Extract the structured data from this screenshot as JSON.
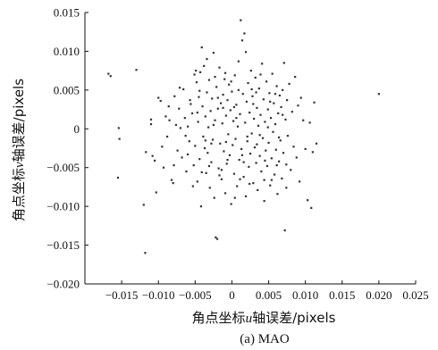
{
  "chart_data": {
    "type": "scatter",
    "caption": "(a) MAO",
    "xlabel": {
      "prefix": "角点坐标",
      "var": "u",
      "suffix": "轴误差/pixels"
    },
    "ylabel": {
      "prefix": "角点坐标",
      "var": "v",
      "suffix": "轴误差/pixels"
    },
    "xlim": [
      -0.02,
      0.025
    ],
    "ylim": [
      -0.02,
      0.015
    ],
    "x_ticks": [
      {
        "value": -0.015,
        "label": "−0.015"
      },
      {
        "value": -0.01,
        "label": "−0.010"
      },
      {
        "value": -0.005,
        "label": "−0.005"
      },
      {
        "value": 0,
        "label": "0"
      },
      {
        "value": 0.005,
        "label": "0.005"
      },
      {
        "value": 0.01,
        "label": "0.010"
      },
      {
        "value": 0.015,
        "label": "0.015"
      },
      {
        "value": 0.02,
        "label": "0.020"
      },
      {
        "value": 0.025,
        "label": "0.025"
      }
    ],
    "y_ticks": [
      {
        "value": 0.015,
        "label": "0.015"
      },
      {
        "value": 0.01,
        "label": "0.010"
      },
      {
        "value": 0.005,
        "label": "0.005"
      },
      {
        "value": 0,
        "label": "0"
      },
      {
        "value": -0.005,
        "label": "−0.005"
      },
      {
        "value": -0.01,
        "label": "−0.010"
      },
      {
        "value": -0.015,
        "label": "−0.015"
      },
      {
        "value": -0.02,
        "label": "−0.020"
      }
    ],
    "grid": false,
    "legend": "none",
    "marker_color": "#333333",
    "points": [
      [
        -0.0168,
        0.0071
      ],
      [
        -0.0165,
        0.0068
      ],
      [
        -0.0155,
        -0.0063
      ],
      [
        -0.0154,
        0.0001
      ],
      [
        -0.0153,
        -0.0013
      ],
      [
        -0.013,
        0.0076
      ],
      [
        -0.012,
        -0.0098
      ],
      [
        -0.0118,
        -0.016
      ],
      [
        -0.0117,
        -0.003
      ],
      [
        -0.011,
        0.0012
      ],
      [
        -0.011,
        0.0006
      ],
      [
        -0.0108,
        -0.0035
      ],
      [
        -0.0105,
        -0.0041
      ],
      [
        -0.0103,
        -0.0082
      ],
      [
        -0.01,
        0.004
      ],
      [
        -0.0097,
        0.0036
      ],
      [
        -0.0095,
        -0.0023
      ],
      [
        -0.0093,
        -0.005
      ],
      [
        -0.009,
        0.0016
      ],
      [
        -0.0088,
        -0.001
      ],
      [
        -0.0085,
        0.0011
      ],
      [
        -0.0082,
        -0.0066
      ],
      [
        -0.008,
        -0.007
      ],
      [
        -0.0078,
        0.0042
      ],
      [
        -0.0076,
        0.0005
      ],
      [
        -0.0074,
        -0.0028
      ],
      [
        -0.0072,
        0.0026
      ],
      [
        -0.007,
        0.0001
      ],
      [
        -0.0068,
        -0.0037
      ],
      [
        -0.0066,
        0.0051
      ],
      [
        -0.0064,
        0.0014
      ],
      [
        -0.0062,
        -0.0055
      ],
      [
        -0.006,
        0.0003
      ],
      [
        -0.0058,
        -0.0016
      ],
      [
        -0.0056,
        0.0032
      ],
      [
        -0.0054,
        0.002
      ],
      [
        -0.0052,
        -0.0047
      ],
      [
        -0.0051,
        0.007
      ],
      [
        -0.005,
        -0.0022
      ],
      [
        -0.0049,
        0.0075
      ],
      [
        -0.0048,
        0.006
      ],
      [
        -0.0047,
        -0.0068
      ],
      [
        -0.0046,
        0.0009
      ],
      [
        -0.0045,
        0.0041
      ],
      [
        -0.0044,
        -0.0039
      ],
      [
        -0.0043,
        0.0073
      ],
      [
        -0.0042,
        -0.01
      ],
      [
        -0.0041,
        0.0105
      ],
      [
        -0.004,
        0.0029
      ],
      [
        -0.0039,
        -0.001
      ],
      [
        -0.0038,
        0.0081
      ],
      [
        -0.0037,
        -0.0025
      ],
      [
        -0.0036,
        0.0016
      ],
      [
        -0.0035,
        -0.0057
      ],
      [
        -0.0034,
        0.0047
      ],
      [
        -0.0033,
        -0.0031
      ],
      [
        -0.0032,
        0.0002
      ],
      [
        -0.0031,
        0.0063
      ],
      [
        -0.003,
        -0.0076
      ],
      [
        -0.0029,
        0.0023
      ],
      [
        -0.0028,
        -0.0043
      ],
      [
        -0.0027,
        0.0039
      ],
      [
        -0.0026,
        -0.0014
      ],
      [
        -0.0025,
        0.0098
      ],
      [
        -0.0024,
        -0.0089
      ],
      [
        -0.0023,
        0.0011
      ],
      [
        -0.0022,
        -0.014
      ],
      [
        -0.0021,
        0.0054
      ],
      [
        -0.002,
        -0.0142
      ],
      [
        -0.0019,
        0.0026
      ],
      [
        -0.0018,
        -0.0051
      ],
      [
        -0.0017,
        0.0079
      ],
      [
        -0.0016,
        -0.0019
      ],
      [
        -0.0015,
        0.0033
      ],
      [
        -0.0014,
        -0.0065
      ],
      [
        -0.0013,
        0.0007
      ],
      [
        -0.0012,
        0.0044
      ],
      [
        -0.0011,
        -0.0029
      ],
      [
        -0.001,
        0.0064
      ],
      [
        -0.0009,
        -0.0083
      ],
      [
        -0.0008,
        0.0017
      ],
      [
        -0.0007,
        -0.0045
      ],
      [
        -0.0006,
        0.0037
      ],
      [
        -0.0005,
        -0.0007
      ],
      [
        -0.0004,
        0.0057
      ],
      [
        -0.0003,
        -0.0034
      ],
      [
        -0.0002,
        0.0024
      ],
      [
        -0.0001,
        -0.0097
      ],
      [
        0.0,
        0.0048
      ],
      [
        0.0001,
        -0.0021
      ],
      [
        0.0002,
        0.001
      ],
      [
        0.0003,
        -0.0058
      ],
      [
        0.0004,
        0.0069
      ],
      [
        0.0005,
        -0.0013
      ],
      [
        0.0006,
        0.0031
      ],
      [
        0.0007,
        -0.0074
      ],
      [
        0.0008,
        0.0003
      ],
      [
        0.0009,
        0.0087
      ],
      [
        0.001,
        -0.004
      ],
      [
        0.0011,
        0.0019
      ],
      [
        0.0012,
        0.014
      ],
      [
        0.0013,
        -0.0026
      ],
      [
        0.0014,
        0.0114
      ],
      [
        0.0015,
        0.0045
      ],
      [
        0.0016,
        -0.0062
      ],
      [
        0.0017,
        0.0123
      ],
      [
        0.0018,
        0.0008
      ],
      [
        0.0019,
        -0.0087
      ],
      [
        0.002,
        0.0035
      ],
      [
        0.0021,
        -0.0016
      ],
      [
        0.0022,
        0.0059
      ],
      [
        0.0023,
        -0.0049
      ],
      [
        0.0024,
        0.0021
      ],
      [
        0.0025,
        -0.0032
      ],
      [
        0.0026,
        0.0075
      ],
      [
        0.0027,
        -0.0006
      ],
      [
        0.0028,
        0.0042
      ],
      [
        0.0029,
        -0.007
      ],
      [
        0.003,
        0.0013
      ],
      [
        0.0031,
        -0.0024
      ],
      [
        0.0032,
        0.0066
      ],
      [
        0.0033,
        -0.0044
      ],
      [
        0.0034,
        0.0027
      ],
      [
        0.0035,
        -0.0079
      ],
      [
        0.0036,
        0.0004
      ],
      [
        0.0037,
        0.0052
      ],
      [
        0.0038,
        -0.0035
      ],
      [
        0.0039,
        0.0018
      ],
      [
        0.004,
        -0.0055
      ],
      [
        0.0041,
        0.0084
      ],
      [
        0.0042,
        -0.0012
      ],
      [
        0.0043,
        0.0038
      ],
      [
        0.0044,
        -0.0066
      ],
      [
        0.0045,
        0.0009
      ],
      [
        0.0046,
        -0.0028
      ],
      [
        0.0047,
        0.0061
      ],
      [
        0.0048,
        -0.0048
      ],
      [
        0.0049,
        0.0025
      ],
      [
        0.005,
        -0.0018
      ],
      [
        0.0051,
        0.0046
      ],
      [
        0.0052,
        -0.0073
      ],
      [
        0.0053,
        0.0014
      ],
      [
        0.0054,
        -0.0038
      ],
      [
        0.0055,
        0.0071
      ],
      [
        0.0056,
        -0.0004
      ],
      [
        0.0057,
        0.0033
      ],
      [
        0.0058,
        -0.0059
      ],
      [
        0.0059,
        0.0006
      ],
      [
        0.006,
        -0.0027
      ],
      [
        0.0061,
        0.0055
      ],
      [
        0.0062,
        -0.0084
      ],
      [
        0.0063,
        0.002
      ],
      [
        0.0064,
        -0.0042
      ],
      [
        0.0065,
        0.0043
      ],
      [
        0.0066,
        -0.0015
      ],
      [
        0.0067,
        0.0028
      ],
      [
        0.0068,
        -0.0064
      ],
      [
        0.0069,
        0.005
      ],
      [
        0.007,
        -0.0031
      ],
      [
        0.0071,
        0.0085
      ],
      [
        0.0072,
        -0.0131
      ],
      [
        0.0073,
        0.0012
      ],
      [
        0.0074,
        -0.0046
      ],
      [
        0.0075,
        0.0037
      ],
      [
        0.0076,
        -0.0009
      ],
      [
        0.0078,
        0.0058
      ],
      [
        0.008,
        -0.0053
      ],
      [
        0.0082,
        0.0022
      ],
      [
        0.0084,
        -0.0023
      ],
      [
        0.0086,
        0.0067
      ],
      [
        0.0088,
        -0.0037
      ],
      [
        0.009,
        0.003
      ],
      [
        0.0092,
        -0.0068
      ],
      [
        0.0094,
        0.004
      ],
      [
        0.0097,
        0.0011
      ],
      [
        0.01,
        -0.0026
      ],
      [
        0.0103,
        -0.0092
      ],
      [
        0.0106,
        0.0008
      ],
      [
        0.0108,
        -0.0102
      ],
      [
        0.011,
        -0.003
      ],
      [
        0.0112,
        0.0034
      ],
      [
        0.0115,
        -0.0019
      ],
      [
        0.02,
        0.0045
      ],
      [
        -0.0086,
        0.0029
      ],
      [
        -0.0079,
        -0.0047
      ],
      [
        -0.0071,
        0.0053
      ],
      [
        -0.0063,
        -0.0009
      ],
      [
        -0.0057,
        0.0037
      ],
      [
        -0.0053,
        -0.0074
      ],
      [
        -0.0047,
        0.0021
      ],
      [
        -0.0041,
        -0.0056
      ],
      [
        -0.0034,
        0.009
      ],
      [
        -0.0028,
        -0.0019
      ],
      [
        -0.0023,
        0.0067
      ],
      [
        -0.0017,
        -0.006
      ],
      [
        -0.0012,
        0.0027
      ],
      [
        -0.0006,
        -0.004
      ],
      [
        -0.0001,
        0.0061
      ],
      [
        0.0004,
        -0.0089
      ],
      [
        0.0009,
        0.005
      ],
      [
        0.0014,
        -0.0034
      ],
      [
        0.0019,
        0.0099
      ],
      [
        0.0024,
        -0.0071
      ],
      [
        0.0029,
        0.0032
      ],
      [
        0.0034,
        -0.002
      ],
      [
        0.0039,
        0.007
      ],
      [
        0.0044,
        -0.0093
      ],
      [
        0.0049,
        0.0002
      ],
      [
        0.0054,
        -0.0066
      ],
      [
        0.0059,
        0.0045
      ],
      [
        0.0064,
        -0.0011
      ],
      [
        0.0069,
        0.0018
      ],
      [
        0.0074,
        -0.0076
      ],
      [
        -0.006,
        -0.0033
      ],
      [
        -0.0044,
        0.0049
      ],
      [
        -0.0031,
        -0.0048
      ],
      [
        -0.0019,
        0.004
      ],
      [
        -0.0008,
        -0.0017
      ],
      [
        0.0003,
        0.0028
      ],
      [
        0.0016,
        -0.0043
      ],
      [
        0.0027,
        0.0051
      ],
      [
        0.0038,
        -0.0008
      ],
      [
        0.0052,
        0.0035
      ],
      [
        -0.0036,
        -0.0015
      ],
      [
        -0.0014,
        -0.0053
      ],
      [
        0.0006,
        0.0014
      ],
      [
        0.0021,
        -0.001
      ],
      [
        0.0045,
        -0.0041
      ],
      [
        -0.0025,
        0.0005
      ],
      [
        -0.0009,
        0.0072
      ],
      [
        0.0011,
        -0.0065
      ],
      [
        0.0033,
        0.0047
      ],
      [
        0.0061,
        -0.0047
      ]
    ]
  }
}
